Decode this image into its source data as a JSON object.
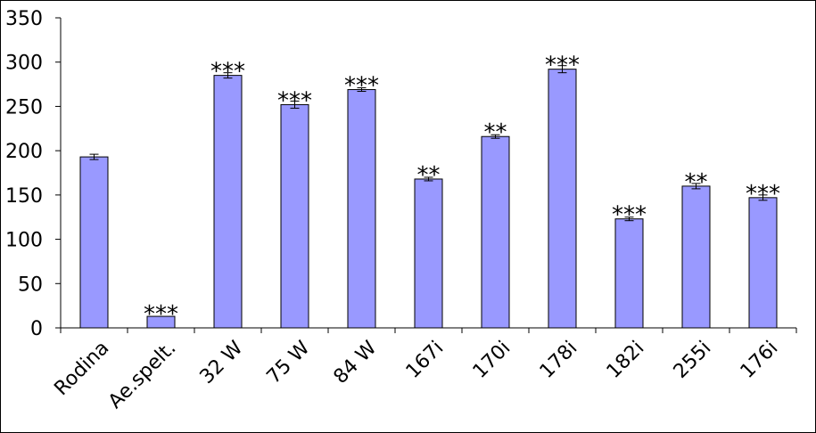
{
  "chart_data": {
    "type": "bar",
    "categories": [
      "Rodina",
      "Ae.spelt.",
      "32 W",
      "75 W",
      "84 W",
      "167i",
      "170i",
      "178i",
      "182i",
      "255i",
      "176i"
    ],
    "values": [
      193,
      13,
      285,
      252,
      269,
      168,
      216,
      292,
      123,
      160,
      147
    ],
    "errors": [
      3,
      0,
      3,
      4,
      2,
      2,
      2,
      4,
      2,
      3,
      3
    ],
    "significance": [
      "",
      "***",
      "***",
      "***",
      "***",
      "**",
      "**",
      "***",
      "***",
      "**",
      "***"
    ],
    "ylim": [
      0,
      350
    ],
    "yticks": [
      0,
      50,
      100,
      150,
      200,
      250,
      300,
      350
    ],
    "bar_color": "#9999ff",
    "grid": false,
    "legend": "none"
  }
}
